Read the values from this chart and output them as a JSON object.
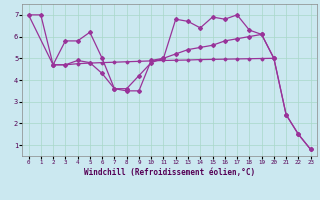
{
  "xlabel": "Windchill (Refroidissement éolien,°C)",
  "background_color": "#cbe8f0",
  "grid_color": "#a8d8c8",
  "line_color": "#993399",
  "xlim": [
    -0.5,
    23.5
  ],
  "ylim": [
    0.5,
    7.5
  ],
  "xticks": [
    0,
    1,
    2,
    3,
    4,
    5,
    6,
    7,
    8,
    9,
    10,
    11,
    12,
    13,
    14,
    15,
    16,
    17,
    18,
    19,
    20,
    21,
    22,
    23
  ],
  "yticks": [
    1,
    2,
    3,
    4,
    5,
    6,
    7
  ],
  "series1_x": [
    0,
    1,
    2,
    3,
    4,
    5,
    6,
    7,
    8,
    9,
    10,
    11,
    12,
    13,
    14,
    15,
    16,
    17,
    18,
    19,
    20,
    21,
    22,
    23
  ],
  "series1_y": [
    7.0,
    7.0,
    4.7,
    5.8,
    5.8,
    6.2,
    5.0,
    3.6,
    3.5,
    3.5,
    4.9,
    5.0,
    6.8,
    6.7,
    6.4,
    6.9,
    6.8,
    7.0,
    6.3,
    6.1,
    5.0,
    2.4,
    1.5,
    0.8
  ],
  "series2_x": [
    2,
    3,
    4,
    5,
    6,
    7,
    8,
    9,
    10,
    11,
    12,
    13,
    14,
    15,
    16,
    17,
    18,
    19,
    20,
    21,
    22,
    23
  ],
  "series2_y": [
    4.7,
    4.7,
    4.9,
    4.8,
    4.3,
    3.6,
    3.6,
    4.2,
    4.8,
    5.0,
    5.2,
    5.4,
    5.5,
    5.6,
    5.8,
    5.9,
    6.0,
    6.1,
    5.0,
    2.4,
    1.5,
    0.8
  ],
  "series3_x": [
    0,
    2,
    3,
    4,
    5,
    6,
    7,
    8,
    9,
    10,
    11,
    12,
    13,
    14,
    15,
    16,
    17,
    18,
    19,
    20
  ],
  "series3_y": [
    7.0,
    4.7,
    4.7,
    4.75,
    4.78,
    4.8,
    4.82,
    4.84,
    4.86,
    4.88,
    4.9,
    4.91,
    4.92,
    4.94,
    4.95,
    4.96,
    4.97,
    4.98,
    4.99,
    5.0
  ]
}
